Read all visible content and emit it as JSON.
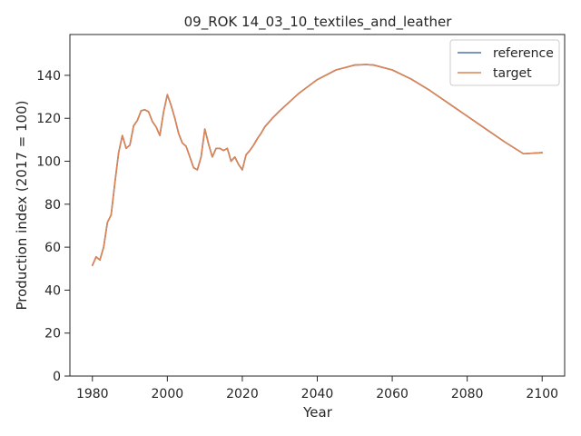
{
  "chart_data": {
    "type": "line",
    "title": "09_ROK 14_03_10_textiles_and_leather",
    "xlabel": "Year",
    "ylabel": "Production index (2017 = 100)",
    "xlim": [
      1974,
      2106
    ],
    "ylim": [
      0,
      159
    ],
    "xticks": [
      1980,
      2000,
      2020,
      2040,
      2060,
      2080,
      2100
    ],
    "yticks": [
      0,
      20,
      40,
      60,
      80,
      100,
      120,
      140
    ],
    "grid": false,
    "legend": "top-right",
    "series": [
      {
        "name": "reference",
        "color": "#4c72b0",
        "x": [
          1980,
          1981,
          1982,
          1983,
          1984,
          1985,
          1986,
          1987,
          1988,
          1989,
          1990,
          1991,
          1992,
          1993,
          1994,
          1995,
          1996,
          1997,
          1998,
          1999,
          2000,
          2001,
          2002,
          2003,
          2004,
          2005,
          2006,
          2007,
          2008,
          2009,
          2010,
          2011,
          2012,
          2013,
          2014,
          2015,
          2016,
          2017,
          2018,
          2019,
          2020,
          2021,
          2022,
          2023,
          2024,
          2025,
          2026,
          2027,
          2028,
          2030,
          2035,
          2040,
          2045,
          2050,
          2053,
          2055,
          2060,
          2065,
          2070,
          2075,
          2080,
          2085,
          2090,
          2095,
          2100
        ],
        "y": [
          51.5,
          55.5,
          54,
          60,
          71.5,
          75,
          90,
          104,
          112,
          106,
          107.5,
          116.5,
          119,
          123.5,
          124,
          123,
          118.5,
          116,
          112,
          123,
          131,
          126,
          120,
          113,
          108.5,
          107,
          102,
          97,
          96,
          102,
          115,
          108,
          102,
          106,
          106,
          105,
          106,
          100,
          102,
          98.5,
          96,
          103,
          105,
          107.5,
          110.5,
          113,
          116,
          118,
          120,
          123.5,
          131.5,
          138,
          142.5,
          144.8,
          145,
          144.8,
          142.5,
          138.3,
          133,
          127,
          121,
          115,
          109,
          103.5,
          104
        ]
      },
      {
        "name": "target",
        "color": "#dd8452",
        "x": [
          1980,
          1981,
          1982,
          1983,
          1984,
          1985,
          1986,
          1987,
          1988,
          1989,
          1990,
          1991,
          1992,
          1993,
          1994,
          1995,
          1996,
          1997,
          1998,
          1999,
          2000,
          2001,
          2002,
          2003,
          2004,
          2005,
          2006,
          2007,
          2008,
          2009,
          2010,
          2011,
          2012,
          2013,
          2014,
          2015,
          2016,
          2017,
          2018,
          2019,
          2020,
          2021,
          2022,
          2023,
          2024,
          2025,
          2026,
          2027,
          2028,
          2030,
          2035,
          2040,
          2045,
          2050,
          2053,
          2055,
          2060,
          2065,
          2070,
          2075,
          2080,
          2085,
          2090,
          2095,
          2100
        ],
        "y": [
          51.5,
          55.5,
          54,
          60,
          71.5,
          75,
          90,
          104,
          112,
          106,
          107.5,
          116.5,
          119,
          123.5,
          124,
          123,
          118.5,
          116,
          112,
          123,
          131,
          126,
          120,
          113,
          108.5,
          107,
          102,
          97,
          96,
          102,
          115,
          108,
          102,
          106,
          106,
          105,
          106,
          100,
          102,
          98.5,
          96,
          103,
          105,
          107.5,
          110.5,
          113,
          116,
          118,
          120,
          123.5,
          131.5,
          138,
          142.5,
          144.8,
          145,
          144.8,
          142.5,
          138.3,
          133,
          127,
          121,
          115,
          109,
          103.5,
          104
        ]
      }
    ]
  }
}
